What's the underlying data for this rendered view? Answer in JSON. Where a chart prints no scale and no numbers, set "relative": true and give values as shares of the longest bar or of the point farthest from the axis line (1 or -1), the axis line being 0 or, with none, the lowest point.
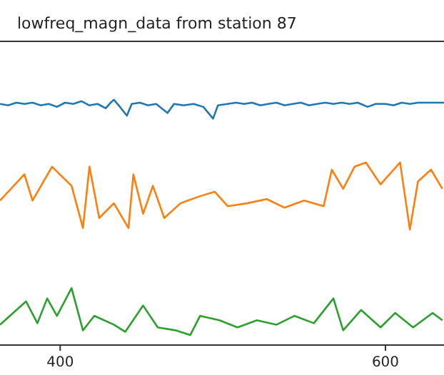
{
  "chart_data": {
    "type": "line",
    "title": "lowfreq_magn_data from station 87",
    "relative": true,
    "xlim": [
      363,
      636
    ],
    "xticks": [
      400,
      600
    ],
    "series": [
      {
        "color": "#1f77b4",
        "x": [
          363,
          368,
          373,
          378,
          383,
          388,
          393,
          398,
          403,
          408,
          413,
          418,
          423,
          428,
          431,
          433,
          436,
          441,
          444,
          449,
          454,
          459,
          466,
          470,
          476,
          482,
          488,
          494,
          497,
          503,
          508,
          513,
          518,
          523,
          528,
          533,
          538,
          543,
          548,
          553,
          558,
          563,
          568,
          573,
          578,
          583,
          589,
          594,
          600,
          605,
          610,
          615,
          620,
          625,
          630,
          636
        ],
        "values": [
          0.983,
          0.977,
          0.988,
          0.983,
          0.988,
          0.977,
          0.983,
          0.971,
          0.988,
          0.983,
          0.994,
          0.977,
          0.983,
          0.965,
          0.988,
          1,
          0.977,
          0.935,
          0.983,
          0.988,
          0.977,
          0.983,
          0.946,
          0.983,
          0.977,
          0.983,
          0.971,
          0.923,
          0.977,
          0.983,
          0.988,
          0.983,
          0.988,
          0.977,
          0.983,
          0.988,
          0.977,
          0.983,
          0.988,
          0.977,
          0.983,
          0.988,
          0.983,
          0.988,
          0.983,
          0.988,
          0.971,
          0.983,
          0.983,
          0.977,
          0.988,
          0.983,
          0.988,
          0.988,
          0.988,
          0.988
        ]
      },
      {
        "color": "#ff7f0e",
        "x": [
          363,
          378,
          383,
          395,
          407,
          414,
          418,
          424,
          433,
          442,
          445,
          451,
          457,
          464,
          474,
          486,
          495,
          503,
          515,
          527,
          538,
          550,
          562,
          567,
          574,
          581,
          588,
          597,
          609,
          615,
          620,
          628,
          635
        ],
        "values": [
          0.589,
          0.696,
          0.589,
          0.727,
          0.649,
          0.477,
          0.727,
          0.518,
          0.578,
          0.477,
          0.696,
          0.535,
          0.649,
          0.518,
          0.578,
          0.607,
          0.625,
          0.566,
          0.578,
          0.595,
          0.56,
          0.589,
          0.566,
          0.715,
          0.637,
          0.727,
          0.744,
          0.655,
          0.744,
          0.471,
          0.667,
          0.715,
          0.637
        ]
      },
      {
        "color": "#2ca02c",
        "x": [
          363,
          379,
          386,
          392,
          398,
          407,
          414,
          421,
          433,
          440,
          451,
          460,
          471,
          480,
          486,
          498,
          509,
          521,
          533,
          544,
          556,
          568,
          574,
          585,
          597,
          606,
          617,
          629,
          635
        ],
        "values": [
          0.083,
          0.178,
          0.089,
          0.19,
          0.119,
          0.232,
          0.06,
          0.119,
          0.083,
          0.054,
          0.161,
          0.072,
          0.06,
          0.041,
          0.119,
          0.101,
          0.072,
          0.101,
          0.083,
          0.119,
          0.089,
          0.19,
          0.06,
          0.143,
          0.072,
          0.131,
          0.072,
          0.131,
          0.101
        ]
      }
    ]
  }
}
